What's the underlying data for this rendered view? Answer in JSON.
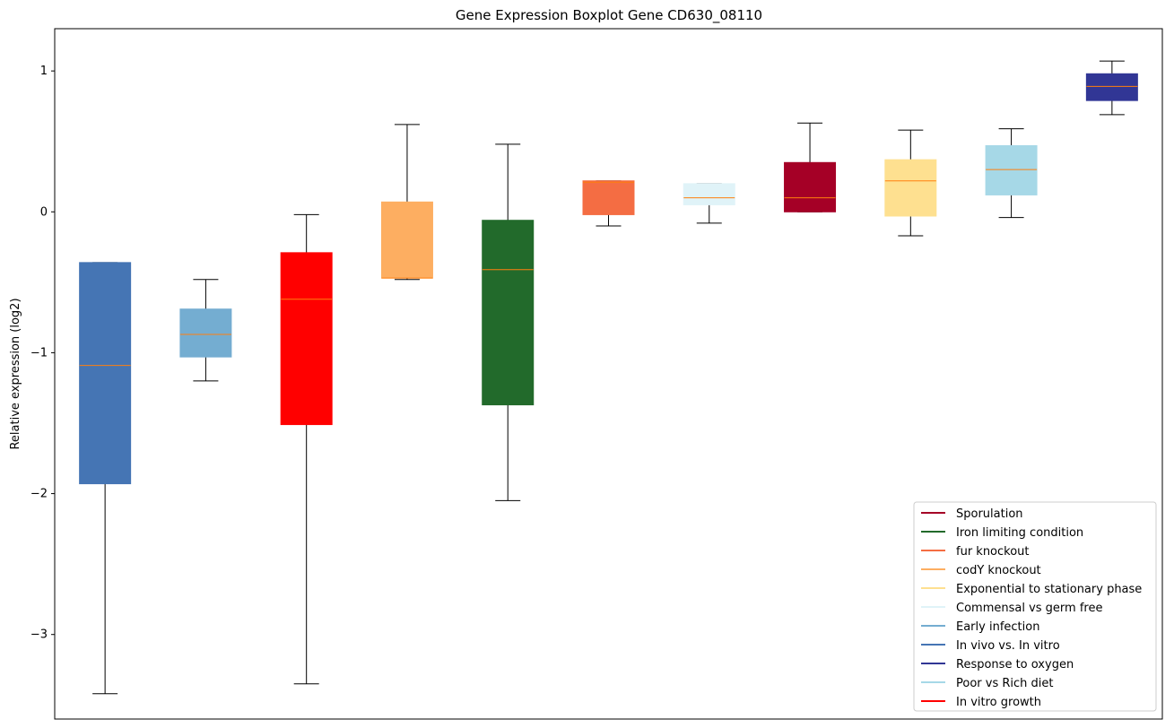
{
  "chart_data": {
    "type": "boxplot",
    "title": "Gene Expression Boxplot Gene CD630_08110",
    "xlabel": "",
    "ylabel": "Relative expression (log2)",
    "ylim": [
      -3.6,
      1.3
    ],
    "yticks": [
      {
        "value": 1,
        "label": "1"
      },
      {
        "value": 0,
        "label": "0"
      },
      {
        "value": -1,
        "label": "−1"
      },
      {
        "value": -2,
        "label": "−2"
      },
      {
        "value": -3,
        "label": "−3"
      }
    ],
    "legend_position": "lower-right",
    "boxes": [
      {
        "name": "In vivo vs. In vitro",
        "color": "#4575b4",
        "whislo": -3.42,
        "q1": -1.93,
        "med": -1.09,
        "q3": -0.36,
        "whishi": -0.36
      },
      {
        "name": "Early infection",
        "color": "#74add1",
        "whislo": -1.2,
        "q1": -1.03,
        "med": -0.87,
        "q3": -0.69,
        "whishi": -0.48
      },
      {
        "name": "In vitro growth",
        "color": "#ff0000",
        "whislo": -3.35,
        "q1": -1.51,
        "med": -0.62,
        "q3": -0.29,
        "whishi": -0.02
      },
      {
        "name": "codY knockout",
        "color": "#fdae61",
        "whislo": -0.48,
        "q1": -0.47,
        "med": -0.47,
        "q3": 0.07,
        "whishi": 0.62
      },
      {
        "name": "Iron limiting condition",
        "color": "#226a2b",
        "whislo": -2.05,
        "q1": -1.37,
        "med": -0.41,
        "q3": -0.06,
        "whishi": 0.48
      },
      {
        "name": "fur knockout",
        "color": "#f46d43",
        "whislo": -0.1,
        "q1": -0.02,
        "med": 0.21,
        "q3": 0.22,
        "whishi": 0.22
      },
      {
        "name": "Commensal vs germ free",
        "color": "#e0f3f8",
        "whislo": -0.08,
        "q1": 0.05,
        "med": 0.1,
        "q3": 0.2,
        "whishi": 0.2
      },
      {
        "name": "Sporulation",
        "color": "#a50026",
        "whislo": 0.0,
        "q1": 0.0,
        "med": 0.1,
        "q3": 0.35,
        "whishi": 0.63
      },
      {
        "name": "Exponential to stationary phase",
        "color": "#fee090",
        "whislo": -0.17,
        "q1": -0.03,
        "med": 0.22,
        "q3": 0.37,
        "whishi": 0.58
      },
      {
        "name": "Poor vs Rich diet",
        "color": "#a6d8e7",
        "whislo": -0.04,
        "q1": 0.12,
        "med": 0.3,
        "q3": 0.47,
        "whishi": 0.59
      },
      {
        "name": "Response to oxygen",
        "color": "#313695",
        "whislo": 0.69,
        "q1": 0.79,
        "med": 0.89,
        "q3": 0.98,
        "whishi": 1.07
      }
    ],
    "legend": [
      {
        "label": "Sporulation",
        "color": "#a50026"
      },
      {
        "label": "Iron limiting condition",
        "color": "#226a2b"
      },
      {
        "label": "fur knockout",
        "color": "#f46d43"
      },
      {
        "label": "codY knockout",
        "color": "#fdae61"
      },
      {
        "label": "Exponential to stationary phase",
        "color": "#fee090"
      },
      {
        "label": "Commensal vs germ free",
        "color": "#e0f3f8"
      },
      {
        "label": "Early infection",
        "color": "#74add1"
      },
      {
        "label": "In vivo vs. In vitro",
        "color": "#4575b4"
      },
      {
        "label": "Response to oxygen",
        "color": "#313695"
      },
      {
        "label": "Poor vs Rich diet",
        "color": "#a6d8e7"
      },
      {
        "label": "In vitro growth",
        "color": "#ff0000"
      }
    ],
    "median_color": "#ff7f0e",
    "whisker_color": "#000000"
  }
}
